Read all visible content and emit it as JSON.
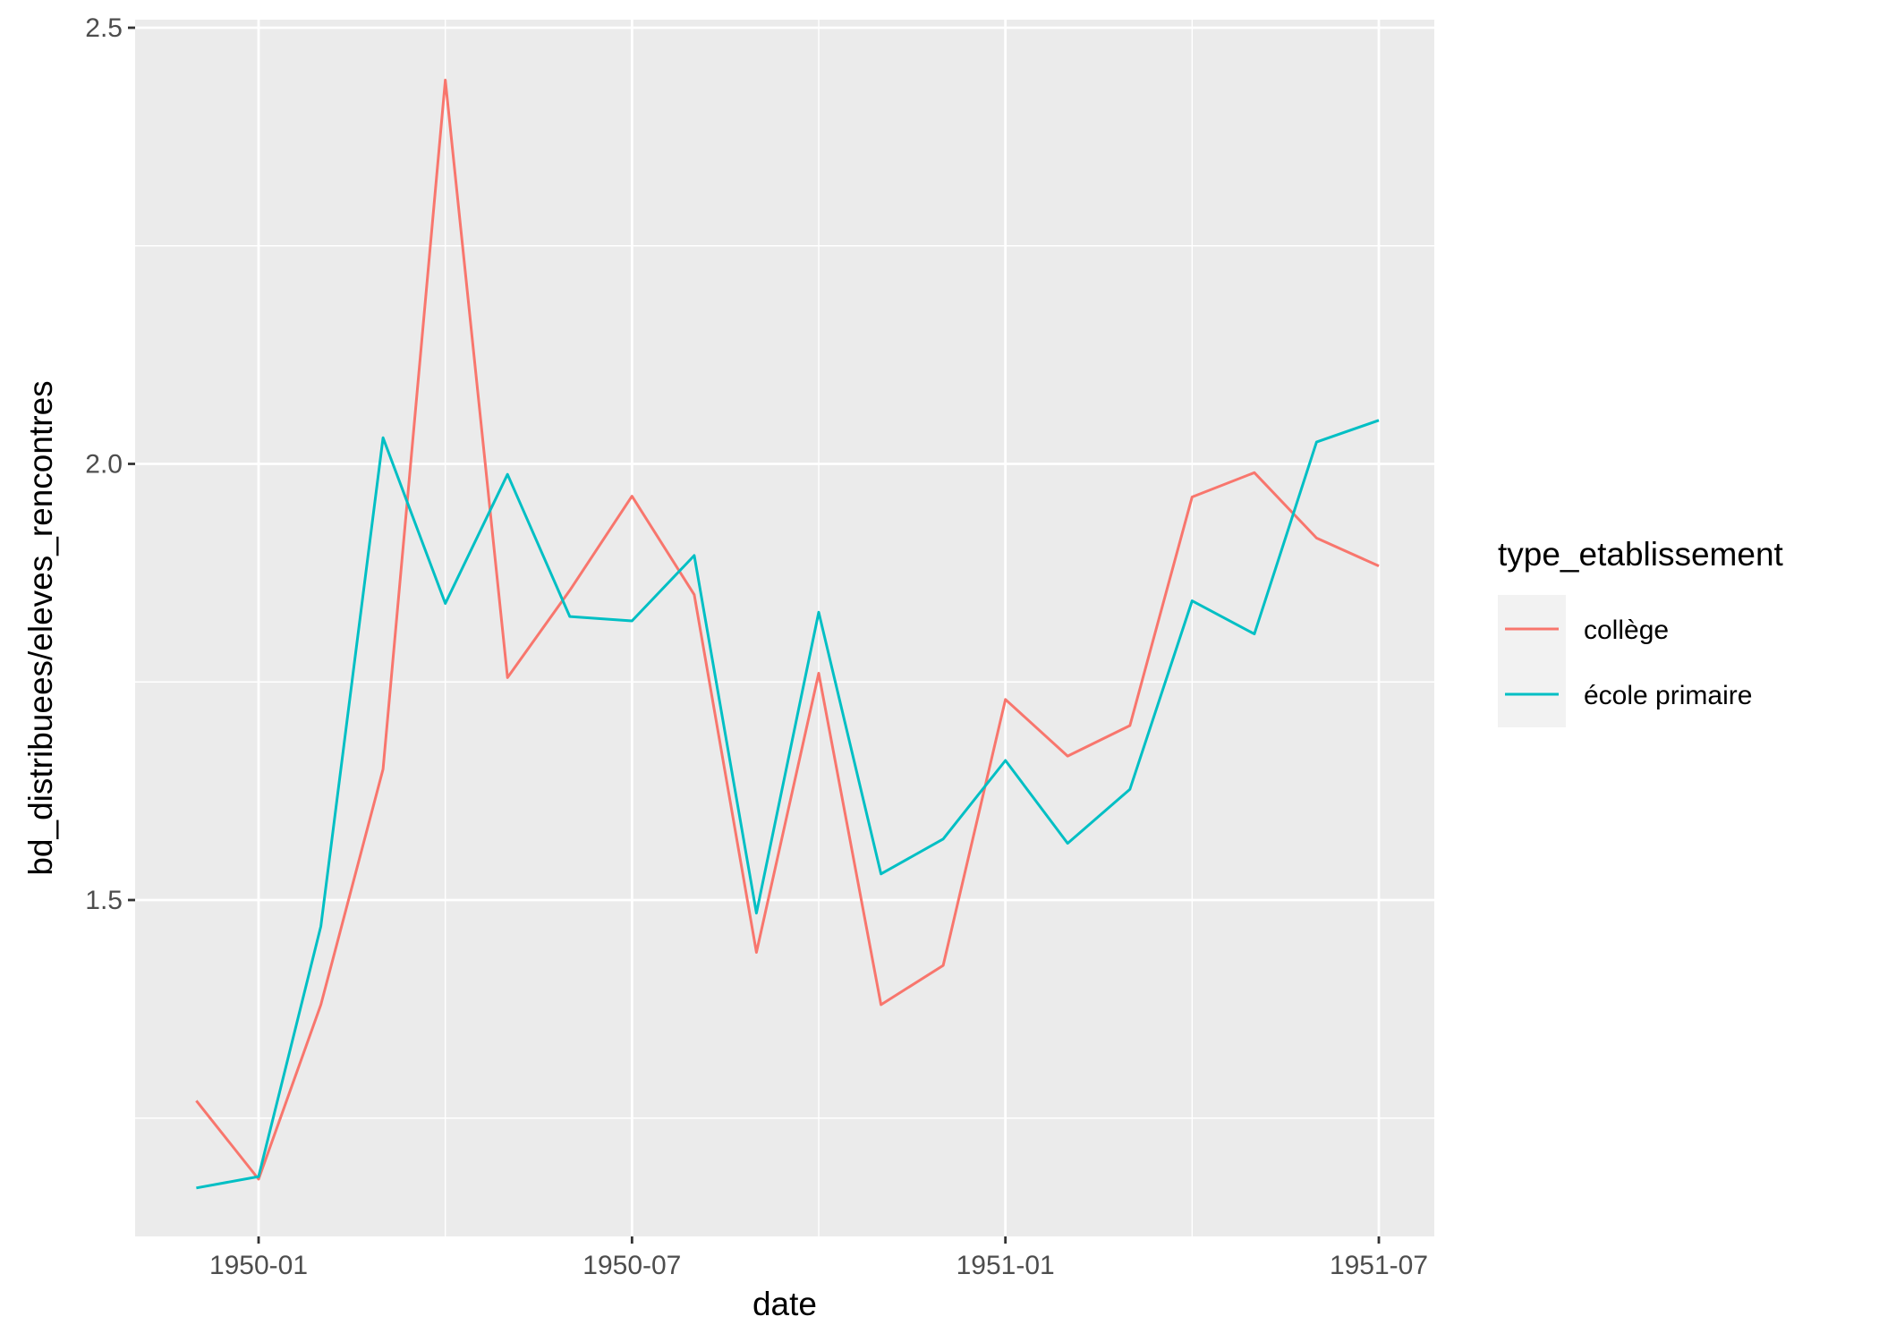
{
  "chart_data": {
    "type": "line",
    "title": "",
    "xlabel": "date",
    "ylabel": "bd_distribuees/eleves_rencontres",
    "x": [
      "1949-12",
      "1950-01",
      "1950-02",
      "1950-03",
      "1950-04",
      "1950-05",
      "1950-06",
      "1950-07",
      "1950-08",
      "1950-09",
      "1950-10",
      "1950-11",
      "1950-12",
      "1951-01",
      "1951-02",
      "1951-03",
      "1951-04",
      "1951-05",
      "1951-06",
      "1951-07"
    ],
    "x_ticks": [
      "1950-01",
      "1950-07",
      "1951-01",
      "1951-07"
    ],
    "y_ticks": [
      1.5,
      2.0,
      2.5
    ],
    "y_tick_labels": [
      "1.5",
      "2.0",
      "2.5"
    ],
    "ylim": [
      1.1,
      2.5
    ],
    "grid": true,
    "legend": {
      "title": "type_etablissement",
      "position": "right"
    },
    "series": [
      {
        "name": "collège",
        "color": "#F8766D",
        "values": [
          1.27,
          1.18,
          1.38,
          1.65,
          2.44,
          1.755,
          1.855,
          1.963,
          1.85,
          1.44,
          1.76,
          1.38,
          1.425,
          1.73,
          1.665,
          1.7,
          1.962,
          1.99,
          1.915,
          1.883
        ]
      },
      {
        "name": "école primaire",
        "color": "#00BFC4",
        "values": [
          1.17,
          1.183,
          1.47,
          2.03,
          1.84,
          1.988,
          1.825,
          1.82,
          1.895,
          1.485,
          1.83,
          1.53,
          1.57,
          1.66,
          1.565,
          1.627,
          1.843,
          1.805,
          2.025,
          2.05
        ]
      }
    ]
  }
}
